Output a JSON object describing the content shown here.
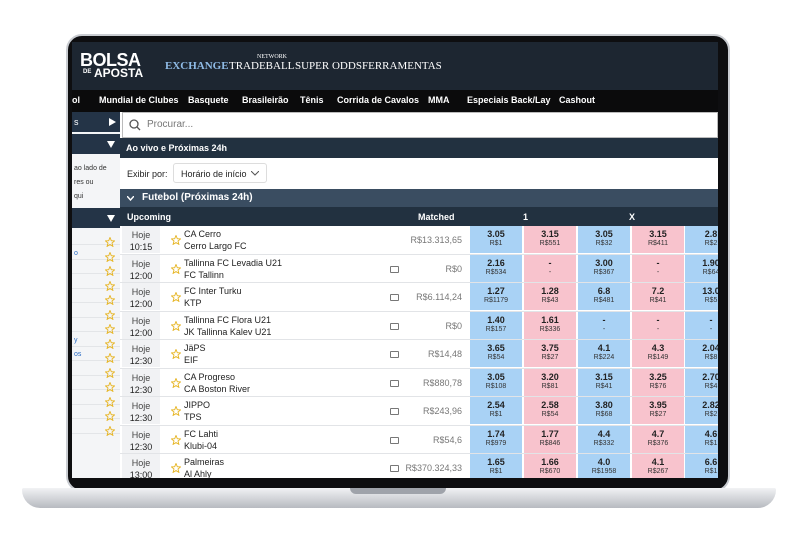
{
  "header": {
    "logo": {
      "main": "BOLSA",
      "small": "DE",
      "sub": "APOSTA"
    },
    "nav": [
      {
        "label": "EXCHANGE"
      },
      {
        "label": "TRADEBALL",
        "badge": "NETWORK"
      },
      {
        "label": "SUPER ODDS"
      },
      {
        "label": "FERRAMENTAS"
      }
    ]
  },
  "menu": [
    "ol",
    "Mundial de Clubes",
    "Basquete",
    "Brasileirão",
    "Tênis",
    "Corrida de Cavalos",
    "MMA",
    "Especiais Back/Lay",
    "Cashout"
  ],
  "sidebar": {
    "heading": "s",
    "note": [
      "ao lado de",
      "res ou",
      "qui"
    ],
    "links": [
      "o",
      "y",
      "os"
    ]
  },
  "search": {
    "placeholder": "Procurar..."
  },
  "section": {
    "title": "Ao vivo e Próximas 24h",
    "sort_label": "Exibir por:",
    "sort_value": "Horário de início"
  },
  "group": {
    "title": "Futebol (Próximas 24h)",
    "columns": {
      "event": "Upcoming",
      "matched": "Matched",
      "home": "1",
      "draw": "X"
    }
  },
  "rows": [
    {
      "day": "Hoje",
      "time": "10:15",
      "home": "CA Cerro",
      "away": "Cerro Largo FC",
      "matched": "R$13.313,65",
      "odds": [
        [
          "3.05",
          "R$1"
        ],
        [
          "3.15",
          "R$551"
        ],
        [
          "3.05",
          "R$32"
        ],
        [
          "3.15",
          "R$411"
        ],
        [
          "2.8",
          "R$2"
        ]
      ]
    },
    {
      "day": "Hoje",
      "time": "12:00",
      "home": "Tallinna FC Levadia U21",
      "away": "FC Tallinn",
      "matched": "R$0",
      "odds": [
        [
          "2.16",
          "R$534"
        ],
        [
          "-",
          "-"
        ],
        [
          "3.00",
          "R$367"
        ],
        [
          "-",
          "-"
        ],
        [
          "1.90",
          "R$64"
        ]
      ]
    },
    {
      "day": "Hoje",
      "time": "12:00",
      "home": "FC Inter Turku",
      "away": "KTP",
      "matched": "R$6.114,24",
      "odds": [
        [
          "1.27",
          "R$1179"
        ],
        [
          "1.28",
          "R$43"
        ],
        [
          "6.8",
          "R$481"
        ],
        [
          "7.2",
          "R$41"
        ],
        [
          "13.0",
          "R$5"
        ]
      ]
    },
    {
      "day": "Hoje",
      "time": "12:00",
      "home": "Tallinna FC Flora U21",
      "away": "JK Tallinna Kalev U21",
      "matched": "R$0",
      "odds": [
        [
          "1.40",
          "R$157"
        ],
        [
          "1.61",
          "R$336"
        ],
        [
          "-",
          "-"
        ],
        [
          "-",
          "-"
        ],
        [
          "-",
          "-"
        ]
      ]
    },
    {
      "day": "Hoje",
      "time": "12:30",
      "home": "JäPS",
      "away": "EIF",
      "matched": "R$14,48",
      "odds": [
        [
          "3.65",
          "R$54"
        ],
        [
          "3.75",
          "R$27"
        ],
        [
          "4.1",
          "R$224"
        ],
        [
          "4.3",
          "R$149"
        ],
        [
          "2.04",
          "R$8"
        ]
      ]
    },
    {
      "day": "Hoje",
      "time": "12:30",
      "home": "CA Progreso",
      "away": "CA Boston River",
      "matched": "R$880,78",
      "odds": [
        [
          "3.05",
          "R$108"
        ],
        [
          "3.20",
          "R$81"
        ],
        [
          "3.15",
          "R$41"
        ],
        [
          "3.25",
          "R$76"
        ],
        [
          "2.70",
          "R$4"
        ]
      ]
    },
    {
      "day": "Hoje",
      "time": "12:30",
      "home": "JIPPO",
      "away": "TPS",
      "matched": "R$243,96",
      "odds": [
        [
          "2.54",
          "R$1"
        ],
        [
          "2.58",
          "R$54"
        ],
        [
          "3.80",
          "R$68"
        ],
        [
          "3.95",
          "R$27"
        ],
        [
          "2.82",
          "R$2"
        ]
      ]
    },
    {
      "day": "Hoje",
      "time": "12:30",
      "home": "FC Lahti",
      "away": "Klubi-04",
      "matched": "R$54,6",
      "odds": [
        [
          "1.74",
          "R$979"
        ],
        [
          "1.77",
          "R$846"
        ],
        [
          "4.4",
          "R$332"
        ],
        [
          "4.7",
          "R$376"
        ],
        [
          "4.6",
          "R$1"
        ]
      ]
    },
    {
      "day": "Hoje",
      "time": "13:00",
      "home": "Palmeiras",
      "away": "Al Ahly",
      "matched": "R$370.324,33",
      "odds": [
        [
          "1.65",
          "R$1"
        ],
        [
          "1.66",
          "R$670"
        ],
        [
          "4.0",
          "R$1958"
        ],
        [
          "4.1",
          "R$267"
        ],
        [
          "6.6",
          "R$1"
        ]
      ]
    }
  ]
}
